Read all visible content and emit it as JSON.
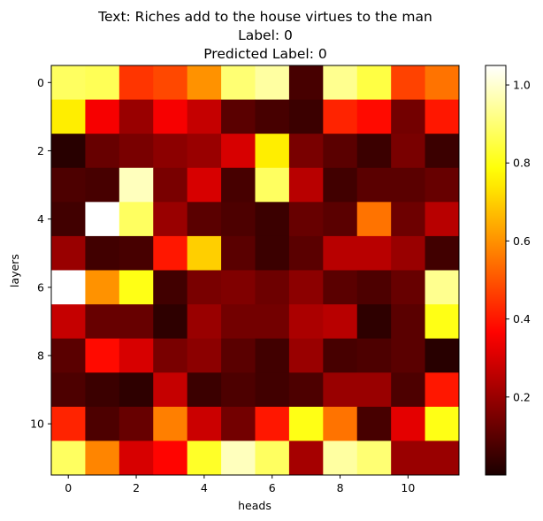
{
  "chart_data": {
    "type": "heatmap",
    "title_lines": [
      "Text: Riches add to the house virtues to the man",
      "Label: 0",
      "Predicted Label: 0"
    ],
    "xlabel": "heads",
    "ylabel": "layers",
    "x_ticks": [
      "0",
      "2",
      "4",
      "6",
      "8",
      "10"
    ],
    "y_ticks": [
      "0",
      "2",
      "4",
      "6",
      "8",
      "10"
    ],
    "colormap": "hot",
    "colorbar": {
      "range": [
        0,
        1.05
      ],
      "ticks": [
        "0.2",
        "0.4",
        "0.6",
        "0.8",
        "1.0"
      ]
    },
    "rows": 12,
    "cols": 12,
    "values": [
      [
        0.88,
        0.87,
        0.45,
        0.48,
        0.6,
        0.9,
        0.95,
        0.07,
        0.93,
        0.85,
        0.47,
        0.55
      ],
      [
        0.75,
        0.35,
        0.2,
        0.35,
        0.27,
        0.1,
        0.07,
        0.05,
        0.42,
        0.38,
        0.14,
        0.4
      ],
      [
        0.02,
        0.12,
        0.15,
        0.18,
        0.2,
        0.3,
        0.75,
        0.15,
        0.1,
        0.05,
        0.15,
        0.05
      ],
      [
        0.08,
        0.07,
        0.98,
        0.15,
        0.3,
        0.07,
        0.88,
        0.25,
        0.06,
        0.1,
        0.1,
        0.12
      ],
      [
        0.06,
        1.05,
        0.88,
        0.2,
        0.1,
        0.08,
        0.05,
        0.12,
        0.1,
        0.55,
        0.13,
        0.25
      ],
      [
        0.2,
        0.06,
        0.07,
        0.4,
        0.7,
        0.1,
        0.05,
        0.1,
        0.25,
        0.25,
        0.2,
        0.06
      ],
      [
        1.05,
        0.6,
        0.8,
        0.06,
        0.15,
        0.16,
        0.13,
        0.18,
        0.1,
        0.08,
        0.12,
        0.93
      ],
      [
        0.27,
        0.12,
        0.12,
        0.03,
        0.2,
        0.14,
        0.14,
        0.23,
        0.25,
        0.03,
        0.1,
        0.8
      ],
      [
        0.1,
        0.38,
        0.3,
        0.15,
        0.18,
        0.1,
        0.06,
        0.2,
        0.07,
        0.08,
        0.1,
        0.02
      ],
      [
        0.08,
        0.05,
        0.03,
        0.27,
        0.05,
        0.08,
        0.06,
        0.08,
        0.2,
        0.2,
        0.08,
        0.4
      ],
      [
        0.42,
        0.08,
        0.12,
        0.57,
        0.28,
        0.14,
        0.4,
        0.8,
        0.55,
        0.07,
        0.32,
        0.8
      ],
      [
        0.88,
        0.58,
        0.3,
        0.37,
        0.82,
        0.98,
        0.88,
        0.22,
        0.95,
        0.9,
        0.2,
        0.2
      ]
    ]
  }
}
